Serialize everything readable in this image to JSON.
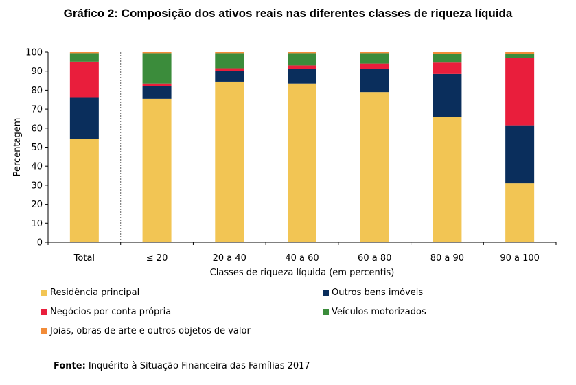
{
  "title": "Gráfico 2: Composição dos ativos reais nas diferentes classes de riqueza líquida",
  "source_label": "Fonte:",
  "source_text": "Inquérito à Situação Financeira das Famílias 2017",
  "chart_data": {
    "type": "bar",
    "stacked": true,
    "categories": [
      "Total",
      "≤ 20",
      "20 a 40",
      "40 a 60",
      "60 a 80",
      "80 a 90",
      "90 a 100"
    ],
    "separator_after_category": "Total",
    "xlabel": "Classes de riqueza líquida (em percentis)",
    "ylabel": "Percentagem",
    "ylim": [
      0,
      100
    ],
    "yticks": [
      0,
      10,
      20,
      30,
      40,
      50,
      60,
      70,
      80,
      90,
      100
    ],
    "grid": false,
    "legend_position": "bottom",
    "series": [
      {
        "name": "Residência principal",
        "color": "#F2C554",
        "values": [
          54.5,
          75.5,
          84.5,
          83.5,
          79,
          66,
          31
        ]
      },
      {
        "name": "Outros bens imóveis",
        "color": "#0A2E5C",
        "values": [
          21.5,
          6.5,
          5.5,
          7.5,
          12,
          22.5,
          30.5
        ]
      },
      {
        "name": "Negócios por conta própria",
        "color": "#E91E3C",
        "values": [
          19,
          1.5,
          1.5,
          2,
          3,
          6,
          35.5
        ]
      },
      {
        "name": "Veículos motorizados",
        "color": "#3B8C3B",
        "values": [
          4.5,
          16,
          8,
          6.5,
          5.5,
          4.5,
          2
        ]
      },
      {
        "name": "Joias, obras de arte e outros objetos de valor",
        "color": "#F28C38",
        "values": [
          0.5,
          0.5,
          0.5,
          0.5,
          0.5,
          1,
          1
        ]
      }
    ]
  }
}
